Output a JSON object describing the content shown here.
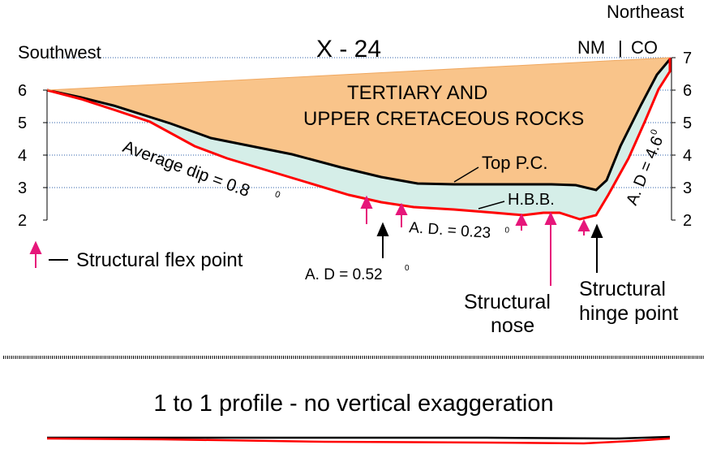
{
  "orientation": {
    "left": "Southwest",
    "right": "Northeast"
  },
  "title": "X - 24",
  "states": {
    "left": "NM",
    "separator": "|",
    "right": "CO"
  },
  "y_axis": {
    "left_ticks": [
      "6",
      "5",
      "4",
      "3",
      "2"
    ],
    "right_ticks": [
      "7",
      "6",
      "5",
      "4",
      "3",
      "2"
    ]
  },
  "units": {
    "tertiary": "TERTIARY AND",
    "tertiary_line2": "UPPER CRETACEOUS ROCKS"
  },
  "horizons": {
    "top_pc": "Top  P.C.",
    "hbb": "H.B.B."
  },
  "dips": {
    "average": "Average dip = 0.8",
    "average_deg": "0",
    "ad_mid": "A. D. = 0.23",
    "ad_mid_deg": "0",
    "ad_low": "A. D = 0.52",
    "ad_low_deg": "0",
    "ad_right": "A. D = 4.6",
    "ad_right_deg": "0"
  },
  "legend": {
    "flex_point": "Structural flex point"
  },
  "annotations": {
    "nose_line1": "Structural",
    "nose_line2": "nose",
    "hinge_line1": "Structural",
    "hinge_line2": "hinge  point"
  },
  "profile_caption": "1 to 1 profile - no vertical exaggeration",
  "colors": {
    "tertiary_fill": "#f9c48a",
    "interval_fill": "#d5eee8",
    "hbb_line": "#ff0000",
    "top_line": "#000000",
    "flex_arrow": "#e6167a",
    "hinge_arrow": "#000000",
    "grid": "#2e5fa8"
  }
}
